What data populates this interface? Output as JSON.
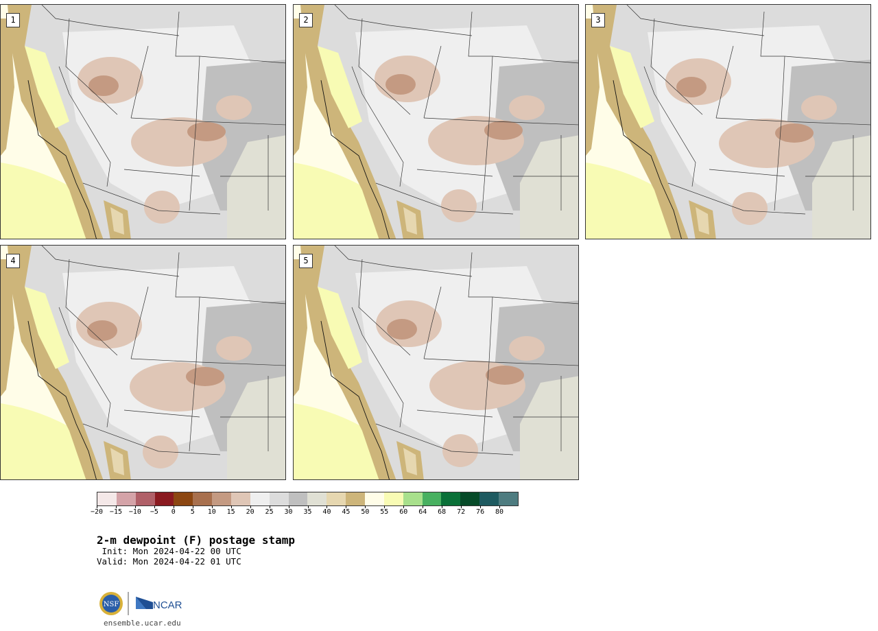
{
  "panels": [
    {
      "label": "1"
    },
    {
      "label": "2"
    },
    {
      "label": "3"
    },
    {
      "label": "4"
    },
    {
      "label": "5"
    }
  ],
  "colorbar": {
    "colors": [
      "#f4e8e8",
      "#d4a3a8",
      "#b06068",
      "#8a1a20",
      "#8c4712",
      "#a8704e",
      "#c49a82",
      "#dfc6b6",
      "#efefef",
      "#dcdcdc",
      "#bfbfbf",
      "#e0e0d4",
      "#e6d7b0",
      "#cdb57a",
      "#fffde8",
      "#f8fbb4",
      "#a8e08c",
      "#48b060",
      "#0a7038",
      "#064a28",
      "#1e5a60",
      "#4e7c80"
    ],
    "tick_labels": [
      "−20",
      "−15",
      "−10",
      "−5",
      "0",
      "5",
      "10",
      "15",
      "20",
      "25",
      "30",
      "35",
      "40",
      "45",
      "50",
      "55",
      "60",
      "64",
      "68",
      "72",
      "76",
      "80"
    ]
  },
  "title": "2-m dewpoint (F) postage stamp",
  "init_text": " Init: Mon 2024-04-22 00 UTC",
  "valid_text": "Valid: Mon 2024-04-22 01 UTC",
  "logos": {
    "nsf": "NSF",
    "ncar": "NCAR"
  },
  "footer_url": "ensemble.ucar.edu"
}
